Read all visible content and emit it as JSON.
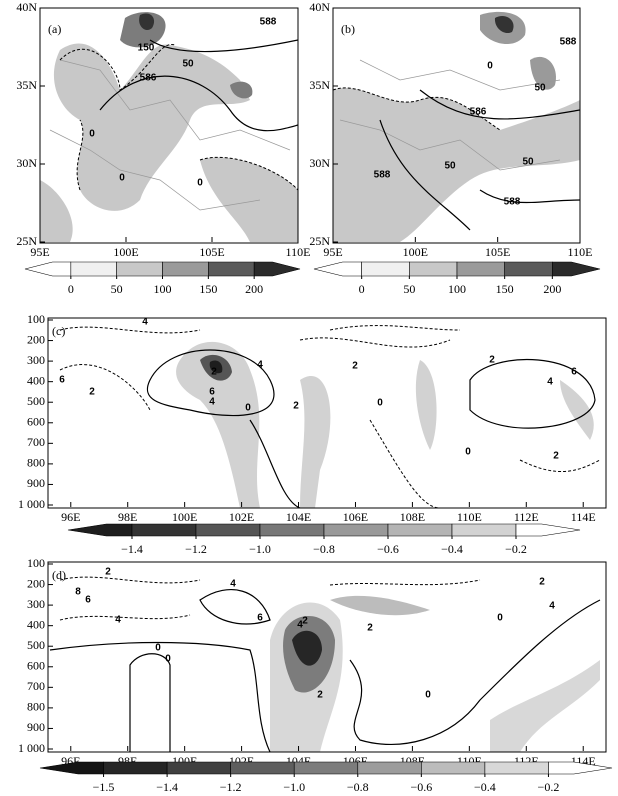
{
  "chart_data": [
    {
      "type": "map",
      "label": "(a)",
      "xlim": [
        95,
        110
      ],
      "ylim": [
        25,
        40
      ],
      "xticks": [
        {
          "value": 95,
          "label": "95E"
        },
        {
          "value": 100,
          "label": "100E"
        },
        {
          "value": 105,
          "label": "105E"
        },
        {
          "value": 110,
          "label": "110E"
        }
      ],
      "yticks": [
        {
          "value": 25,
          "label": "25N"
        },
        {
          "value": 30,
          "label": "30N"
        },
        {
          "value": 35,
          "label": "35N"
        },
        {
          "value": 40,
          "label": "40N"
        }
      ],
      "colorbar": {
        "ticks": [
          0,
          50,
          100,
          150,
          200
        ],
        "colors": [
          "#ffffff",
          "#f0f0f0",
          "#c8c8c8",
          "#9a9a9a",
          "#5a5a5a",
          "#2a2a2a"
        ]
      },
      "annotations": [
        "588",
        "150",
        "50",
        "586",
        "0",
        "0",
        "0"
      ]
    },
    {
      "type": "map",
      "label": "(b)",
      "xlim": [
        95,
        110
      ],
      "ylim": [
        25,
        40
      ],
      "xticks": [
        {
          "value": 95,
          "label": "95E"
        },
        {
          "value": 100,
          "label": "100E"
        },
        {
          "value": 105,
          "label": "105E"
        },
        {
          "value": 110,
          "label": "110E"
        }
      ],
      "yticks": [
        {
          "value": 25,
          "label": "25N"
        },
        {
          "value": 30,
          "label": "30N"
        },
        {
          "value": 35,
          "label": "35N"
        },
        {
          "value": 40,
          "label": "40N"
        }
      ],
      "colorbar": {
        "ticks": [
          0,
          50,
          100,
          150,
          200
        ],
        "colors": [
          "#ffffff",
          "#f0f0f0",
          "#c8c8c8",
          "#9a9a9a",
          "#5a5a5a",
          "#2a2a2a"
        ]
      },
      "annotations": [
        "588",
        "50",
        "586",
        "50",
        "588",
        "588",
        "50",
        "0"
      ]
    },
    {
      "type": "cross-section",
      "label": "(c)",
      "xlim": [
        95.2,
        114.8
      ],
      "ylim": [
        1000,
        100
      ],
      "xticks": [
        {
          "value": 96,
          "label": "96E"
        },
        {
          "value": 98,
          "label": "98E"
        },
        {
          "value": 100,
          "label": "100E"
        },
        {
          "value": 102,
          "label": "102E"
        },
        {
          "value": 104,
          "label": "104E"
        },
        {
          "value": 106,
          "label": "106E"
        },
        {
          "value": 108,
          "label": "108E"
        },
        {
          "value": 110,
          "label": "110E"
        },
        {
          "value": 112,
          "label": "112E"
        },
        {
          "value": 114,
          "label": "114E"
        }
      ],
      "yticks": [
        100,
        200,
        300,
        400,
        500,
        600,
        700,
        800,
        900,
        {
          "value": 1000,
          "label": "1 000"
        }
      ],
      "colorbar": {
        "ticks": [
          {
            "value": -1.4,
            "label": "−1.4"
          },
          {
            "value": -1.2,
            "label": "−1.2"
          },
          {
            "value": -1,
            "label": "−1.0"
          },
          {
            "value": -0.8,
            "label": "−0.8"
          },
          {
            "value": -0.6,
            "label": "−0.6"
          },
          {
            "value": -0.4,
            "label": "−0.4"
          },
          {
            "value": -0.2,
            "label": "−0.2"
          }
        ],
        "colors": [
          "#1e1e1e",
          "#333333",
          "#555555",
          "#777777",
          "#999999",
          "#b4b4b4",
          "#d2d2d2",
          "#ffffff"
        ]
      },
      "annotations": [
        "4",
        "6",
        "2",
        "2",
        "4",
        "6",
        "0",
        "2",
        "4",
        "2",
        "0",
        "2",
        "4",
        "6",
        "2",
        "0"
      ]
    },
    {
      "type": "cross-section",
      "label": "(d)",
      "xlim": [
        95.2,
        114.8
      ],
      "ylim": [
        1000,
        100
      ],
      "xticks": [
        {
          "value": 96,
          "label": "96E"
        },
        {
          "value": 98,
          "label": "98E"
        },
        {
          "value": 100,
          "label": "100E"
        },
        {
          "value": 102,
          "label": "102E"
        },
        {
          "value": 104,
          "label": "104E"
        },
        {
          "value": 106,
          "label": "106E"
        },
        {
          "value": 108,
          "label": "108E"
        },
        {
          "value": 110,
          "label": "110E"
        },
        {
          "value": 112,
          "label": "112E"
        },
        {
          "value": 114,
          "label": "114E"
        }
      ],
      "yticks": [
        100,
        200,
        300,
        400,
        500,
        600,
        700,
        800,
        900,
        {
          "value": 1000,
          "label": "1 000"
        }
      ],
      "colorbar": {
        "ticks": [
          {
            "value": -1.5,
            "label": "−1.5"
          },
          {
            "value": -1.4,
            "label": "−1.4"
          },
          {
            "value": -1.2,
            "label": "−1.2"
          },
          {
            "value": -1,
            "label": "−1.0"
          },
          {
            "value": -0.8,
            "label": "−0.8"
          },
          {
            "value": -0.6,
            "label": "−0.6"
          },
          {
            "value": -0.4,
            "label": "−0.4"
          },
          {
            "value": -0.2,
            "label": "−0.2"
          }
        ],
        "colors": [
          "#141414",
          "#262626",
          "#404040",
          "#5e5e5e",
          "#7c7c7c",
          "#9c9c9c",
          "#bcbcbc",
          "#d8d8d8",
          "#ffffff"
        ]
      },
      "annotations": [
        "2",
        "8",
        "6",
        "4",
        "4",
        "6",
        "2",
        "4",
        "2",
        "0",
        "0",
        "2",
        "0",
        "4",
        "2",
        "0"
      ]
    }
  ]
}
